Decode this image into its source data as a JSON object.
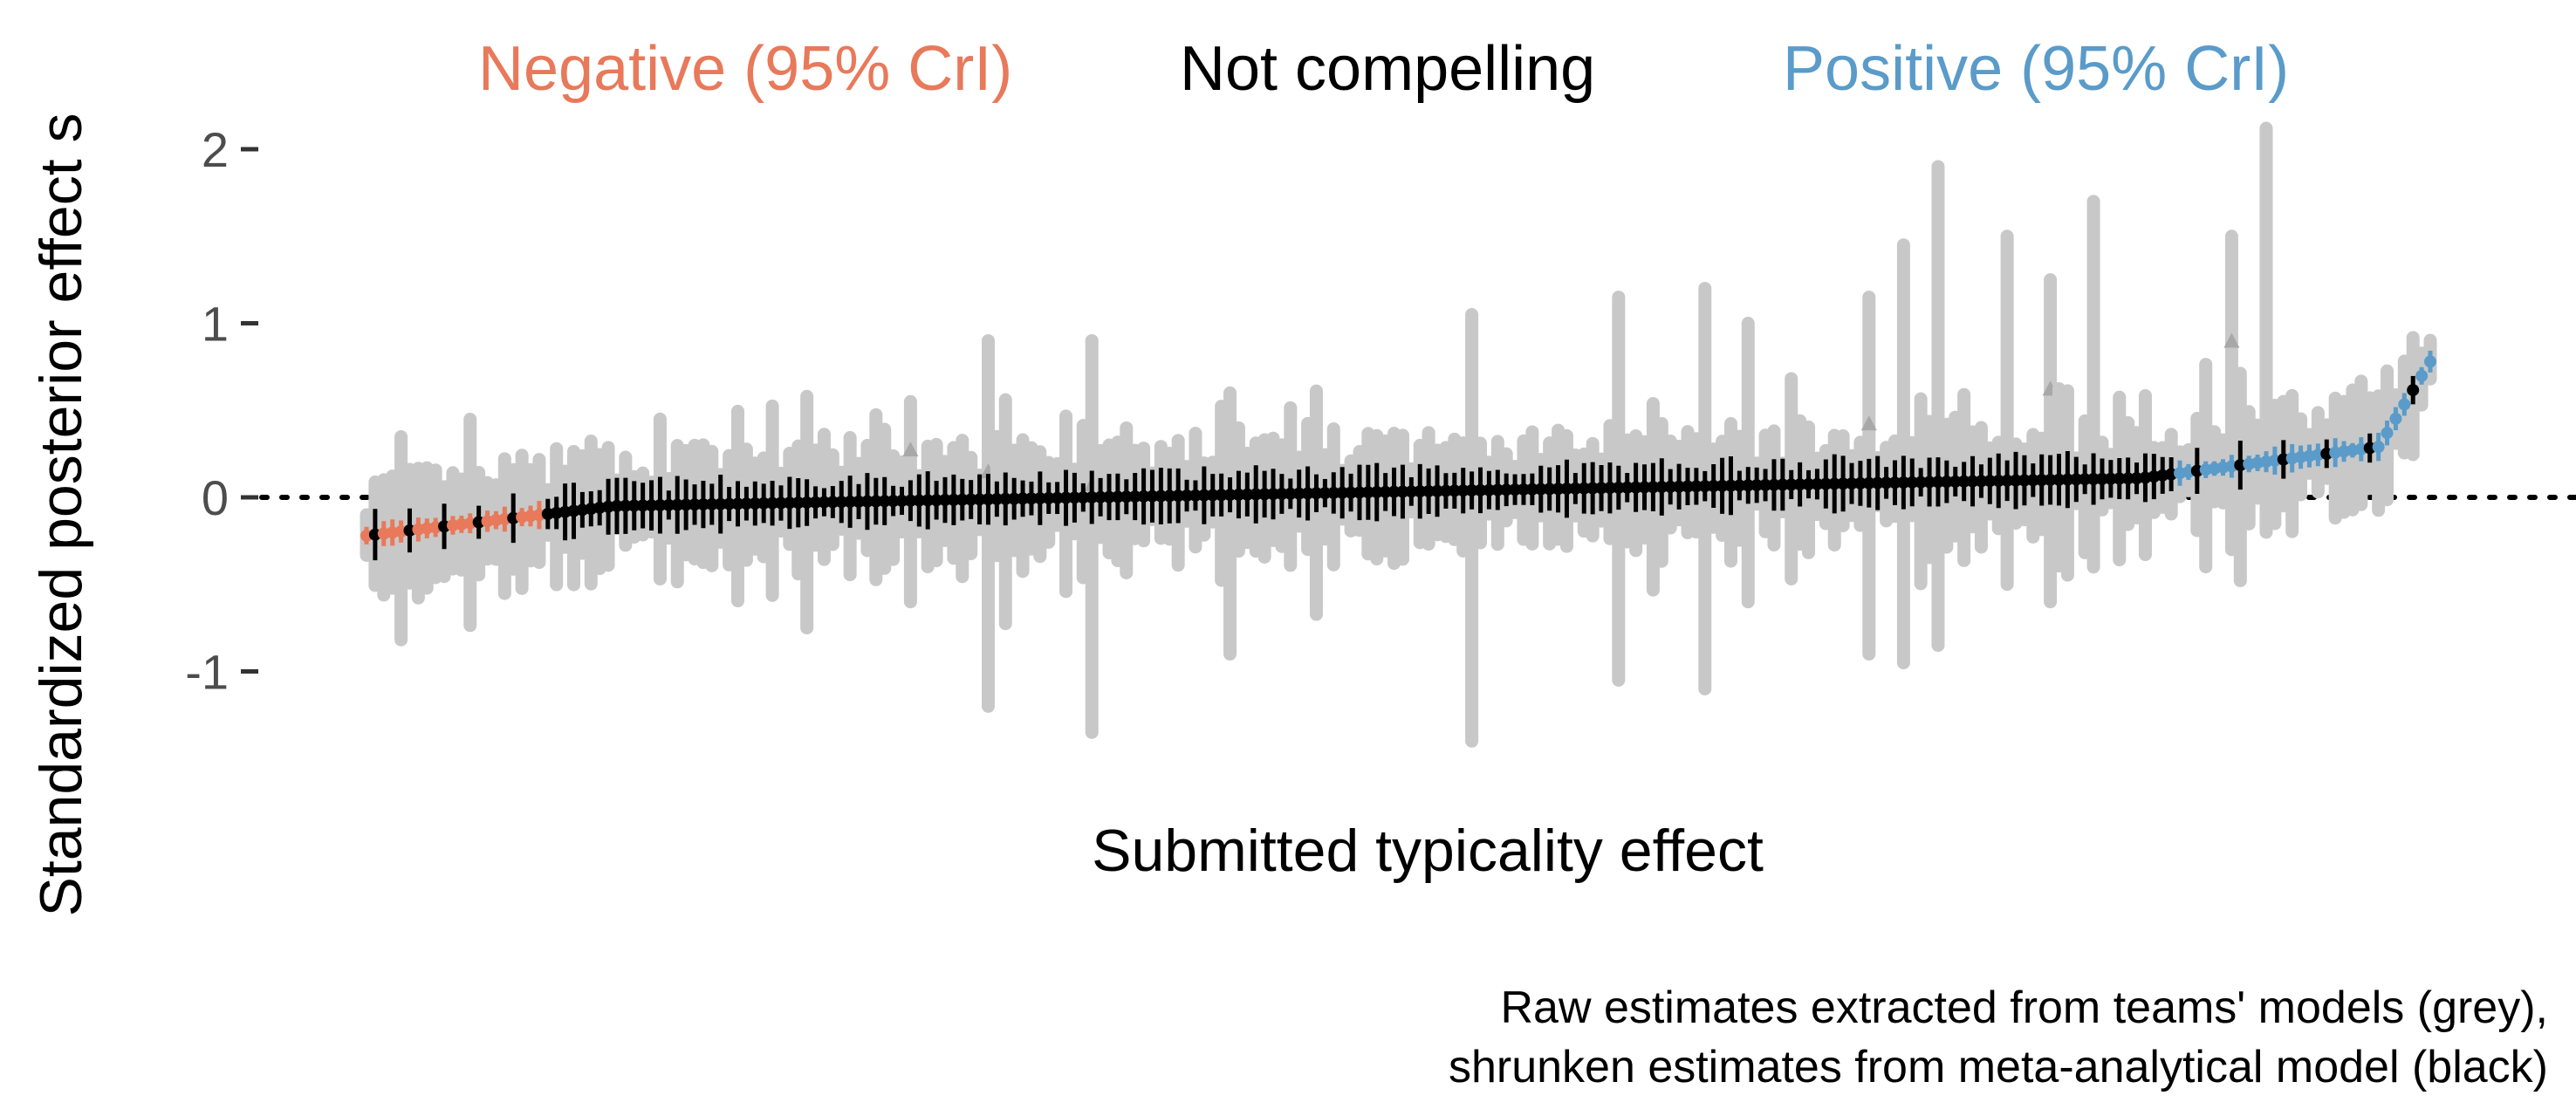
{
  "chart_data": {
    "type": "scatter",
    "title": "",
    "xlabel": "Submitted typicality effect",
    "ylabel": "Standardized posterior effect s",
    "ylim": [
      -1.45,
      2.2
    ],
    "yticks": [
      {
        "value": 2,
        "label": "2"
      },
      {
        "value": 1,
        "label": "1"
      },
      {
        "value": 0,
        "label": "0"
      },
      {
        "value": -1,
        "label": "-1"
      }
    ],
    "reference_line": {
      "y": 0,
      "style": "dotted"
    },
    "grid": false,
    "legend": {
      "placement": "top",
      "entries": [
        {
          "label": "Negative (95% CrI)",
          "color": "#e8795a"
        },
        {
          "label": "Not compelling",
          "color": "#000000"
        },
        {
          "label": "Positive (95% CrI)",
          "color": "#5a9bc9"
        }
      ]
    },
    "caption_lines": [
      "Raw estimates extracted from teams' models (grey),",
      "shrunken estimates from meta-analytical model (black)"
    ],
    "colors": {
      "negative": "#e8795a",
      "not_compelling": "#000000",
      "positive": "#5a9bc9",
      "raw": "#c8c8c8",
      "raw_marker": "#a8a8a8"
    },
    "series_description": "Shrunken estimates with 95% CrI (colored by category) over raw estimates with intervals (grey), sorted by estimate",
    "n_estimates": 240,
    "negative_count": 22,
    "positive_count": 30,
    "shrunken_range": [
      -0.22,
      0.78
    ],
    "raw_extremes": {
      "max_upper": 2.12,
      "min_lower": -1.36
    }
  }
}
